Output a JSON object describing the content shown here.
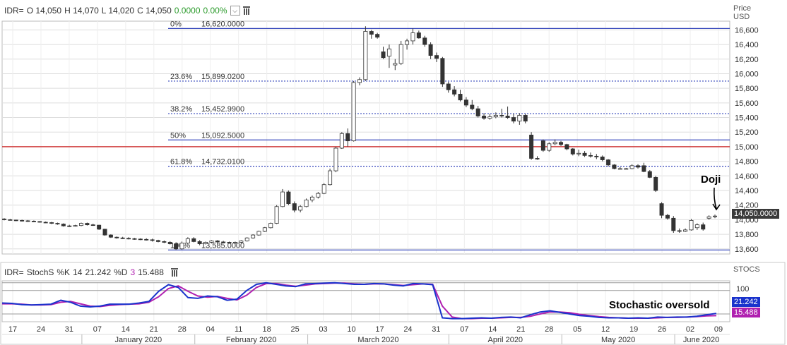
{
  "header": {
    "symbol": "IDR=",
    "open_label": "O",
    "open": "14,050",
    "high_label": "H",
    "high": "14,070",
    "low_label": "L",
    "low": "14,020",
    "close_label": "C",
    "close": "14,050",
    "change": "0.0000",
    "change_pct": "0.00%",
    "change_color": "#2a9a2a"
  },
  "indicator": {
    "symbol": "IDR=",
    "name": "StochS",
    "k_label": "%K",
    "k_period": "14",
    "k_value": "21.242",
    "d_label": "%D",
    "d_period": "3",
    "d_value": "15.488",
    "axis_label": "STOCS",
    "level_100": "100",
    "k_color": "#1a33cc",
    "d_color": "#b020b0",
    "k_tag_color": "#1a33cc",
    "d_tag_color": "#b020b0"
  },
  "price_axis": {
    "label_line1": "Price",
    "label_line2": "USD",
    "last_price_tag": "14,050.0000"
  },
  "annotations": {
    "doji": "Doji",
    "stochastic": "Stochastic oversold"
  },
  "colors": {
    "fib_line": "#3344bb",
    "red_line": "#cc2222",
    "grid": "#dddddd",
    "bear": "#333333"
  },
  "chart_data": {
    "type": "candlestick",
    "y_ticks": [
      13600,
      13800,
      14000,
      14200,
      14400,
      14600,
      14800,
      15000,
      15200,
      15400,
      15600,
      15800,
      16000,
      16200,
      16400,
      16600
    ],
    "y_tick_labels": [
      "13,600",
      "13,800",
      "14,000",
      "14,200",
      "14,400",
      "14,600",
      "14,800",
      "15,000",
      "15,200",
      "15,400",
      "15,600",
      "15,800",
      "16,000",
      "16,200",
      "16,400",
      "16,600"
    ],
    "ylim": [
      13530,
      16720
    ],
    "fib_levels": [
      {
        "pct": "0%",
        "value": "16,620.0000",
        "price": 16620,
        "style": "solid"
      },
      {
        "pct": "23.6%",
        "value": "15,899.0200",
        "price": 15899.02,
        "style": "dotted"
      },
      {
        "pct": "38.2%",
        "value": "15,452.9900",
        "price": 15452.99,
        "style": "dotted"
      },
      {
        "pct": "50%",
        "value": "15,092.5000",
        "price": 15092.5,
        "style": "solid"
      },
      {
        "pct": "61.8%",
        "value": "14,732.0100",
        "price": 14732.01,
        "style": "dotted"
      },
      {
        "pct": "100%",
        "value": "13,585.0000",
        "price": 13585,
        "style": "solid"
      }
    ],
    "horizontal_line": 15000,
    "day_labels": [
      "17",
      "24",
      "31",
      "07",
      "14",
      "21",
      "28",
      "04",
      "11",
      "18",
      "25",
      "03",
      "10",
      "17",
      "24",
      "31",
      "07",
      "14",
      "21",
      "28",
      "05",
      "12",
      "19",
      "26",
      "02",
      "09"
    ],
    "month_labels": [
      "January 2020",
      "February 2020",
      "March 2020",
      "April 2020",
      "May 2020",
      "June 2020"
    ],
    "candles": [
      [
        14010,
        14020,
        13990,
        14000
      ],
      [
        14000,
        14010,
        13990,
        13995
      ],
      [
        13995,
        14000,
        13980,
        13990
      ],
      [
        13990,
        14000,
        13975,
        13985
      ],
      [
        13985,
        13995,
        13970,
        13980
      ],
      [
        13980,
        13990,
        13965,
        13975
      ],
      [
        13975,
        13980,
        13960,
        13965
      ],
      [
        13965,
        13975,
        13955,
        13960
      ],
      [
        13960,
        13970,
        13940,
        13950
      ],
      [
        13950,
        13960,
        13930,
        13940
      ],
      [
        13940,
        13950,
        13905,
        13915
      ],
      [
        13915,
        13930,
        13900,
        13910
      ],
      [
        13910,
        13930,
        13905,
        13920
      ],
      [
        13920,
        13960,
        13910,
        13950
      ],
      [
        13950,
        13960,
        13920,
        13930
      ],
      [
        13930,
        13945,
        13915,
        13925
      ],
      [
        13925,
        13930,
        13860,
        13870
      ],
      [
        13870,
        13875,
        13780,
        13790
      ],
      [
        13790,
        13800,
        13750,
        13760
      ],
      [
        13760,
        13770,
        13740,
        13750
      ],
      [
        13750,
        13765,
        13735,
        13745
      ],
      [
        13745,
        13760,
        13730,
        13740
      ],
      [
        13740,
        13750,
        13725,
        13735
      ],
      [
        13735,
        13745,
        13720,
        13730
      ],
      [
        13730,
        13745,
        13715,
        13725
      ],
      [
        13725,
        13740,
        13700,
        13715
      ],
      [
        13715,
        13725,
        13690,
        13700
      ],
      [
        13700,
        13715,
        13680,
        13690
      ],
      [
        13690,
        13705,
        13660,
        13670
      ],
      [
        13670,
        13690,
        13585,
        13600
      ],
      [
        13600,
        13700,
        13590,
        13680
      ],
      [
        13680,
        13760,
        13670,
        13740
      ],
      [
        13740,
        13760,
        13690,
        13700
      ],
      [
        13700,
        13720,
        13650,
        13670
      ],
      [
        13670,
        13700,
        13660,
        13690
      ],
      [
        13690,
        13720,
        13675,
        13710
      ],
      [
        13710,
        13720,
        13680,
        13695
      ],
      [
        13695,
        13710,
        13680,
        13690
      ],
      [
        13690,
        13700,
        13670,
        13685
      ],
      [
        13685,
        13700,
        13670,
        13690
      ],
      [
        13690,
        13720,
        13680,
        13710
      ],
      [
        13710,
        13760,
        13700,
        13750
      ],
      [
        13750,
        13800,
        13740,
        13790
      ],
      [
        13790,
        13850,
        13780,
        13840
      ],
      [
        13840,
        13900,
        13830,
        13890
      ],
      [
        13890,
        13960,
        13880,
        13950
      ],
      [
        13950,
        14200,
        13940,
        14180
      ],
      [
        14180,
        14420,
        14170,
        14380
      ],
      [
        14380,
        14400,
        14200,
        14220
      ],
      [
        14220,
        14250,
        14100,
        14130
      ],
      [
        14130,
        14200,
        14100,
        14180
      ],
      [
        14180,
        14290,
        14170,
        14270
      ],
      [
        14270,
        14330,
        14240,
        14310
      ],
      [
        14310,
        14380,
        14290,
        14360
      ],
      [
        14360,
        14500,
        14350,
        14480
      ],
      [
        14480,
        14700,
        14470,
        14670
      ],
      [
        14670,
        15000,
        14650,
        14980
      ],
      [
        14980,
        15200,
        14970,
        15180
      ],
      [
        15180,
        15250,
        15000,
        15080
      ],
      [
        15080,
        15900,
        15070,
        15880
      ],
      [
        15880,
        15950,
        15840,
        15920
      ],
      [
        15920,
        16650,
        15900,
        16580
      ],
      [
        16580,
        16600,
        16480,
        16540
      ],
      [
        16540,
        16560,
        16480,
        16500
      ],
      [
        16300,
        16370,
        16200,
        16220
      ],
      [
        16240,
        16400,
        16080,
        16340
      ],
      [
        16120,
        16200,
        16050,
        16140
      ],
      [
        16140,
        16450,
        16120,
        16400
      ],
      [
        16400,
        16480,
        16330,
        16450
      ],
      [
        16450,
        16620,
        16400,
        16560
      ],
      [
        16560,
        16590,
        16480,
        16490
      ],
      [
        16490,
        16520,
        16370,
        16400
      ],
      [
        16400,
        16430,
        16200,
        16250
      ],
      [
        16250,
        16290,
        16160,
        16210
      ],
      [
        16210,
        16230,
        15820,
        15860
      ],
      [
        15860,
        15890,
        15740,
        15780
      ],
      [
        15780,
        15830,
        15690,
        15720
      ],
      [
        15720,
        15780,
        15620,
        15640
      ],
      [
        15640,
        15680,
        15540,
        15570
      ],
      [
        15570,
        15640,
        15500,
        15520
      ],
      [
        15520,
        15560,
        15400,
        15420
      ],
      [
        15420,
        15460,
        15370,
        15390
      ],
      [
        15390,
        15450,
        15370,
        15410
      ],
      [
        15410,
        15470,
        15390,
        15430
      ],
      [
        15430,
        15520,
        15400,
        15420
      ],
      [
        15420,
        15550,
        15380,
        15400
      ],
      [
        15400,
        15450,
        15320,
        15350
      ],
      [
        15350,
        15460,
        15300,
        15430
      ],
      [
        15430,
        15450,
        15320,
        15350
      ],
      [
        15160,
        15200,
        14820,
        14840
      ],
      [
        14840,
        14870,
        14820,
        14830
      ],
      [
        15080,
        15100,
        14930,
        14950
      ],
      [
        14950,
        15060,
        14930,
        15040
      ],
      [
        15040,
        15100,
        15020,
        15060
      ],
      [
        15060,
        15080,
        15010,
        15030
      ],
      [
        15030,
        15040,
        14950,
        14970
      ],
      [
        14970,
        14980,
        14880,
        14900
      ],
      [
        14900,
        14960,
        14870,
        14910
      ],
      [
        14910,
        14940,
        14860,
        14880
      ],
      [
        14880,
        14920,
        14850,
        14870
      ],
      [
        14870,
        14900,
        14830,
        14860
      ],
      [
        14860,
        14880,
        14800,
        14820
      ],
      [
        14820,
        14830,
        14730,
        14750
      ],
      [
        14750,
        14760,
        14690,
        14700
      ],
      [
        14700,
        14720,
        14690,
        14700
      ],
      [
        14700,
        14710,
        14690,
        14700
      ],
      [
        14700,
        14760,
        14690,
        14740
      ],
      [
        14740,
        14760,
        14700,
        14720
      ],
      [
        14740,
        14780,
        14650,
        14660
      ],
      [
        14660,
        14680,
        14570,
        14580
      ],
      [
        14580,
        14600,
        14380,
        14400
      ],
      [
        14220,
        14240,
        14020,
        14060
      ],
      [
        14060,
        14080,
        14000,
        14020
      ],
      [
        14020,
        14050,
        13820,
        13850
      ],
      [
        13850,
        13880,
        13820,
        13840
      ],
      [
        13840,
        13880,
        13830,
        13860
      ],
      [
        13860,
        14010,
        13850,
        13990
      ],
      [
        13890,
        13950,
        13860,
        13930
      ],
      [
        13930,
        13960,
        13850,
        13870
      ],
      [
        14020,
        14060,
        14000,
        14040
      ],
      [
        14050,
        14070,
        14020,
        14050
      ]
    ],
    "series": [
      {
        "name": "%K",
        "values": [
          48,
          47,
          44,
          43,
          44,
          45,
          55,
          50,
          40,
          38,
          40,
          45,
          45,
          45,
          48,
          52,
          78,
          95,
          88,
          62,
          60,
          66,
          64,
          55,
          58,
          80,
          96,
          100,
          96,
          92,
          90,
          97,
          98,
          99,
          100,
          98,
          96,
          96,
          98,
          97,
          94,
          92,
          98,
          97,
          95,
          10,
          8,
          8,
          9,
          10,
          9,
          11,
          12,
          10,
          18,
          25,
          28,
          24,
          20,
          16,
          14,
          11,
          10,
          10,
          9,
          10,
          9,
          12,
          11,
          12,
          12,
          14,
          18,
          21.242
        ]
      },
      {
        "name": "%D",
        "values": [
          46,
          46,
          45,
          43,
          43,
          44,
          50,
          52,
          46,
          40,
          39,
          42,
          44,
          45,
          46,
          50,
          64,
          85,
          92,
          78,
          66,
          63,
          65,
          60,
          56,
          68,
          88,
          98,
          98,
          94,
          91,
          94,
          97,
          98,
          99,
          99,
          97,
          96,
          97,
          97,
          95,
          93,
          95,
          97,
          96,
          40,
          12,
          8,
          8,
          9,
          9,
          10,
          11,
          11,
          14,
          20,
          25,
          25,
          23,
          19,
          16,
          13,
          11,
          10,
          9,
          9,
          9,
          10,
          11,
          11,
          12,
          13,
          15,
          15.488
        ]
      }
    ],
    "stoch_ylim": [
      0,
      105
    ]
  }
}
